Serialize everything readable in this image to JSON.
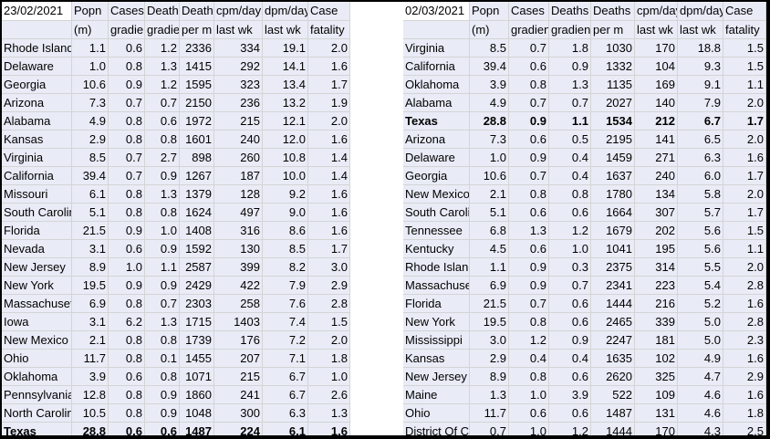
{
  "left": {
    "header1": [
      "23/02/2021",
      "Popn",
      "Cases",
      "Deaths",
      "Deaths",
      "cpm/day",
      "dpm/day",
      "Case"
    ],
    "header2": [
      "",
      "(m)",
      "gradient",
      "gradient",
      "per m",
      "last wk",
      "last wk",
      "fatality"
    ],
    "rows": [
      [
        "Rhode Island",
        "1.1",
        "0.6",
        "1.2",
        "2336",
        "334",
        "19.1",
        "2.0"
      ],
      [
        "Delaware",
        "1.0",
        "0.8",
        "1.3",
        "1415",
        "292",
        "14.1",
        "1.6"
      ],
      [
        "Georgia",
        "10.6",
        "0.9",
        "1.2",
        "1595",
        "323",
        "13.4",
        "1.7"
      ],
      [
        "Arizona",
        "7.3",
        "0.7",
        "0.7",
        "2150",
        "236",
        "13.2",
        "1.9"
      ],
      [
        "Alabama",
        "4.9",
        "0.8",
        "0.6",
        "1972",
        "215",
        "12.1",
        "2.0"
      ],
      [
        "Kansas",
        "2.9",
        "0.8",
        "0.8",
        "1601",
        "240",
        "12.0",
        "1.6"
      ],
      [
        "Virginia",
        "8.5",
        "0.7",
        "2.7",
        "898",
        "260",
        "10.8",
        "1.4"
      ],
      [
        "California",
        "39.4",
        "0.7",
        "0.9",
        "1267",
        "187",
        "10.0",
        "1.4"
      ],
      [
        "Missouri",
        "6.1",
        "0.8",
        "1.3",
        "1379",
        "128",
        "9.2",
        "1.6"
      ],
      [
        "South Carolina",
        "5.1",
        "0.8",
        "0.8",
        "1624",
        "497",
        "9.0",
        "1.6"
      ],
      [
        "Florida",
        "21.5",
        "0.9",
        "1.0",
        "1408",
        "316",
        "8.6",
        "1.6"
      ],
      [
        "Nevada",
        "3.1",
        "0.6",
        "0.9",
        "1592",
        "130",
        "8.5",
        "1.7"
      ],
      [
        "New Jersey",
        "8.9",
        "1.0",
        "1.1",
        "2587",
        "399",
        "8.2",
        "3.0"
      ],
      [
        "New York",
        "19.5",
        "0.9",
        "0.9",
        "2429",
        "422",
        "7.9",
        "2.9"
      ],
      [
        "Massachusetts",
        "6.9",
        "0.8",
        "0.7",
        "2303",
        "258",
        "7.6",
        "2.8"
      ],
      [
        "Iowa",
        "3.1",
        "6.2",
        "1.3",
        "1715",
        "1403",
        "7.4",
        "1.5"
      ],
      [
        "New Mexico",
        "2.1",
        "0.8",
        "0.8",
        "1739",
        "176",
        "7.2",
        "2.0"
      ],
      [
        "Ohio",
        "11.7",
        "0.8",
        "0.1",
        "1455",
        "207",
        "7.1",
        "1.8"
      ],
      [
        "Oklahoma",
        "3.9",
        "0.6",
        "0.8",
        "1071",
        "215",
        "6.7",
        "1.0"
      ],
      [
        "Pennsylvania",
        "12.8",
        "0.8",
        "0.9",
        "1860",
        "241",
        "6.7",
        "2.6"
      ],
      [
        "North Carolina",
        "10.5",
        "0.8",
        "0.9",
        "1048",
        "300",
        "6.3",
        "1.3"
      ],
      [
        "Texas",
        "28.8",
        "0.6",
        "0.6",
        "1487",
        "224",
        "6.1",
        "1.6"
      ]
    ],
    "bold_row": 21
  },
  "right": {
    "header1": [
      "02/03/2021",
      "Popn",
      "Cases",
      "Deaths",
      "Deaths",
      "cpm/day",
      "dpm/day",
      "Case"
    ],
    "header2": [
      "",
      "(m)",
      "gradient",
      "gradient",
      "per m",
      "last wk",
      "last wk",
      "fatality"
    ],
    "rows": [
      [
        "Virginia",
        "8.5",
        "0.7",
        "1.8",
        "1030",
        "170",
        "18.8",
        "1.5"
      ],
      [
        "California",
        "39.4",
        "0.6",
        "0.9",
        "1332",
        "104",
        "9.3",
        "1.5"
      ],
      [
        "Oklahoma",
        "3.9",
        "0.8",
        "1.3",
        "1135",
        "169",
        "9.1",
        "1.1"
      ],
      [
        "Alabama",
        "4.9",
        "0.7",
        "0.7",
        "2027",
        "140",
        "7.9",
        "2.0"
      ],
      [
        "Texas",
        "28.8",
        "0.9",
        "1.1",
        "1534",
        "212",
        "6.7",
        "1.7"
      ],
      [
        "Arizona",
        "7.3",
        "0.6",
        "0.5",
        "2195",
        "141",
        "6.5",
        "2.0"
      ],
      [
        "Delaware",
        "1.0",
        "0.9",
        "0.4",
        "1459",
        "271",
        "6.3",
        "1.6"
      ],
      [
        "Georgia",
        "10.6",
        "0.7",
        "0.4",
        "1637",
        "240",
        "6.0",
        "1.7"
      ],
      [
        "New Mexico",
        "2.1",
        "0.8",
        "0.8",
        "1780",
        "134",
        "5.8",
        "2.0"
      ],
      [
        "South Carolina",
        "5.1",
        "0.6",
        "0.6",
        "1664",
        "307",
        "5.7",
        "1.7"
      ],
      [
        "Tennessee",
        "6.8",
        "1.3",
        "1.2",
        "1679",
        "202",
        "5.6",
        "1.5"
      ],
      [
        "Kentucky",
        "4.5",
        "0.6",
        "1.0",
        "1041",
        "195",
        "5.6",
        "1.1"
      ],
      [
        "Rhode Island",
        "1.1",
        "0.9",
        "0.3",
        "2375",
        "314",
        "5.5",
        "2.0"
      ],
      [
        "Massachusetts",
        "6.9",
        "0.9",
        "0.7",
        "2341",
        "223",
        "5.4",
        "2.8"
      ],
      [
        "Florida",
        "21.5",
        "0.7",
        "0.6",
        "1444",
        "216",
        "5.2",
        "1.6"
      ],
      [
        "New York",
        "19.5",
        "0.8",
        "0.6",
        "2465",
        "339",
        "5.0",
        "2.8"
      ],
      [
        "Mississippi",
        "3.0",
        "1.2",
        "0.9",
        "2247",
        "181",
        "5.0",
        "2.3"
      ],
      [
        "Kansas",
        "2.9",
        "0.4",
        "0.4",
        "1635",
        "102",
        "4.9",
        "1.6"
      ],
      [
        "New Jersey",
        "8.9",
        "0.8",
        "0.6",
        "2620",
        "325",
        "4.7",
        "2.9"
      ],
      [
        "Maine",
        "1.3",
        "1.0",
        "3.9",
        "522",
        "109",
        "4.6",
        "1.6"
      ],
      [
        "Ohio",
        "11.7",
        "0.6",
        "0.6",
        "1487",
        "131",
        "4.6",
        "1.8"
      ],
      [
        "District Of Columbia",
        "0.7",
        "1.0",
        "1.2",
        "1444",
        "170",
        "4.3",
        "2.5"
      ]
    ],
    "bold_row": 4
  }
}
